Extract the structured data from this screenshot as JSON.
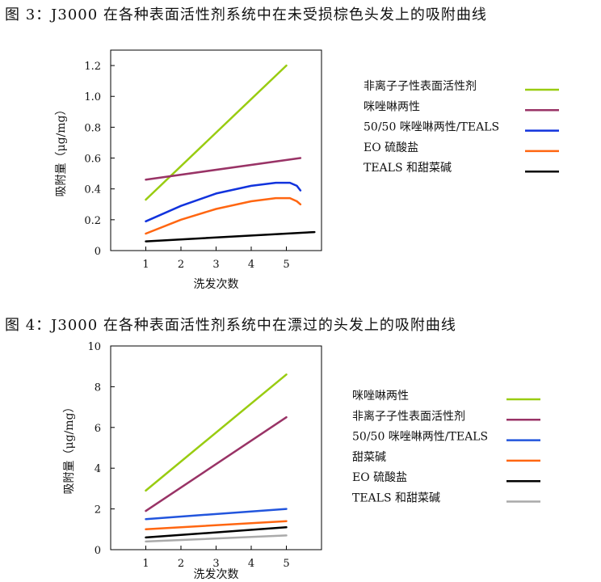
{
  "figures": [
    {
      "caption": "图 3：J3000 在各种表面活性剂系统中在未受损棕色头发上的吸附曲线"
    },
    {
      "caption": "图 4：J3000 在各种表面活性剂系统中在漂过的头发上的吸附曲线"
    }
  ],
  "chart_data": [
    {
      "type": "line",
      "title": "图 3：J3000 在各种表面活性剂系统中在未受损棕色头发上的吸附曲线",
      "xlabel": "洗发次数",
      "ylabel": "吸附量（μg/mg）",
      "xlim": [
        0,
        6
      ],
      "ylim": [
        0,
        1.3
      ],
      "xticks": [
        1,
        2,
        3,
        4,
        5
      ],
      "yticks": [
        0,
        0.2,
        0.4,
        0.6,
        0.8,
        1.0,
        1.2
      ],
      "ytick_labels": [
        "0",
        "0.2",
        "0.4",
        "0.6",
        "0.8",
        "1.0",
        "1.2"
      ],
      "grid": false,
      "legend_position": "right",
      "series": [
        {
          "name": "非离子子性表面活性剂",
          "color": "#99cc11",
          "x": [
            1,
            5
          ],
          "y": [
            0.33,
            1.2
          ]
        },
        {
          "name": "咪唑啉两性",
          "color": "#993366",
          "x": [
            1,
            5.4
          ],
          "y": [
            0.46,
            0.6
          ]
        },
        {
          "name": "50/50 咪唑啉两性/TEALS",
          "color": "#1133dd",
          "x": [
            1,
            2,
            3,
            4,
            4.7,
            5.1,
            5.3,
            5.4
          ],
          "y": [
            0.19,
            0.29,
            0.37,
            0.42,
            0.44,
            0.44,
            0.42,
            0.39
          ]
        },
        {
          "name": "EO 硫酸盐",
          "color": "#ff6611",
          "x": [
            1,
            2,
            3,
            4,
            4.7,
            5.1,
            5.3,
            5.4
          ],
          "y": [
            0.11,
            0.2,
            0.27,
            0.32,
            0.34,
            0.34,
            0.32,
            0.3
          ]
        },
        {
          "name": "TEALS 和甜菜碱",
          "color": "#000000",
          "x": [
            1,
            5.8
          ],
          "y": [
            0.06,
            0.12
          ]
        }
      ]
    },
    {
      "type": "line",
      "title": "图 4：J3000 在各种表面活性剂系统中在漂过的头发上的吸附曲线",
      "xlabel": "洗发次数",
      "ylabel": "吸附量（μg/mg）",
      "xlim": [
        0,
        6
      ],
      "ylim": [
        0,
        10
      ],
      "xticks": [
        1,
        2,
        3,
        4,
        5
      ],
      "yticks": [
        0,
        2,
        4,
        6,
        8,
        10
      ],
      "ytick_labels": [
        "0",
        "2",
        "4",
        "6",
        "8",
        "10"
      ],
      "grid": false,
      "legend_position": "right",
      "series": [
        {
          "name": "咪唑啉两性",
          "color": "#99cc11",
          "x": [
            1,
            5
          ],
          "y": [
            2.9,
            8.6
          ]
        },
        {
          "name": "非离子子性表面活性剂",
          "color": "#993366",
          "x": [
            1,
            5
          ],
          "y": [
            1.9,
            6.5
          ]
        },
        {
          "name": "50/50 咪唑啉两性/TEALS",
          "color": "#2255dd",
          "x": [
            1,
            5
          ],
          "y": [
            1.5,
            2.0
          ]
        },
        {
          "name": "甜菜碱",
          "color": "#ff6611",
          "x": [
            1,
            5
          ],
          "y": [
            1.0,
            1.4
          ]
        },
        {
          "name": "EO 硫酸盐",
          "color": "#000000",
          "x": [
            1,
            5
          ],
          "y": [
            0.6,
            1.1
          ]
        },
        {
          "name": "TEALS 和甜菜碱",
          "color": "#aaaaaa",
          "x": [
            1,
            5
          ],
          "y": [
            0.4,
            0.7
          ]
        }
      ]
    }
  ]
}
